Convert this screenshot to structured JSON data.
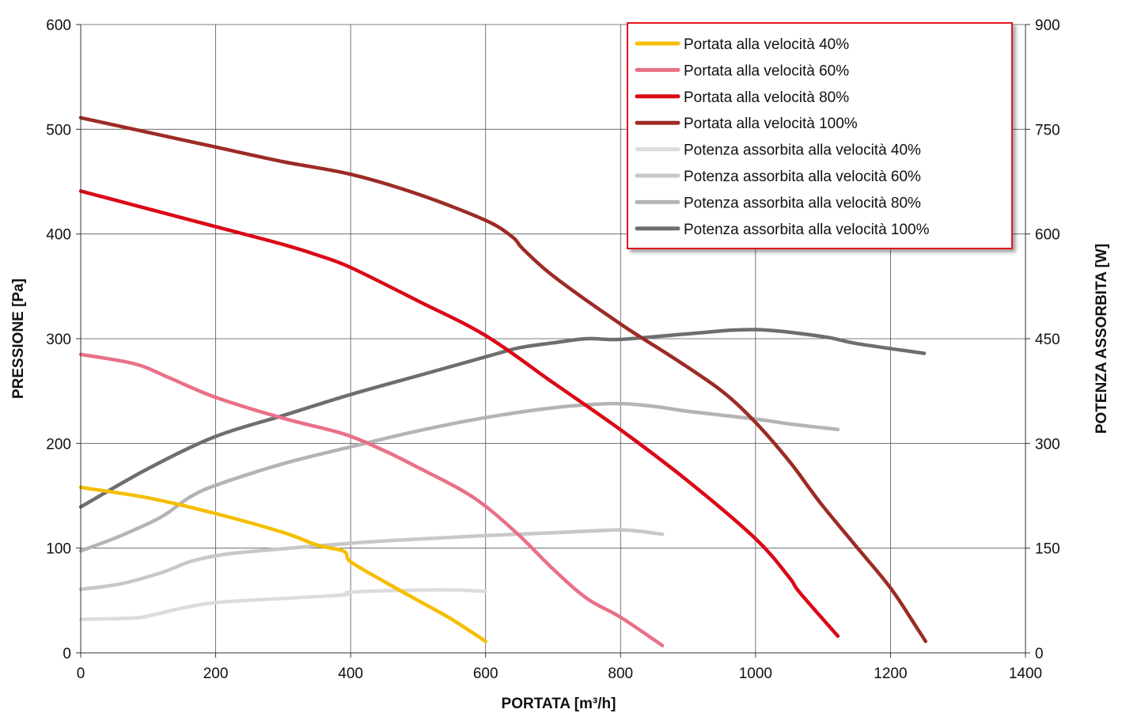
{
  "chart_data": {
    "type": "line",
    "title": "",
    "xlabel": "PORTATA [m³/h]",
    "ylabel": "PRESSIONE [Pa]",
    "y2label": "POTENZA ASSORBITA [W]",
    "xlim": [
      0,
      1400
    ],
    "ylim": [
      0,
      600
    ],
    "y2lim": [
      0,
      900
    ],
    "x_ticks": [
      "0",
      "200",
      "400",
      "600",
      "800",
      "1000",
      "1200",
      "1400"
    ],
    "y_ticks": [
      "0",
      "100",
      "200",
      "300",
      "400",
      "500",
      "600"
    ],
    "y2_ticks": [
      "0",
      "150",
      "300",
      "450",
      "600",
      "750",
      "900"
    ],
    "grid": true,
    "legend_position": "top-right",
    "series": [
      {
        "name": "Portata alla velocità 40%",
        "axis": "left",
        "color": "#F5BE00",
        "points": [
          [
            0,
            158
          ],
          [
            100,
            148
          ],
          [
            200,
            133
          ],
          [
            300,
            115
          ],
          [
            350,
            103
          ],
          [
            390,
            97
          ],
          [
            400,
            87
          ],
          [
            450,
            68
          ],
          [
            500,
            50
          ],
          [
            550,
            32
          ],
          [
            600,
            11
          ]
        ]
      },
      {
        "name": "Portata alla velocità 60%",
        "axis": "left",
        "color": "#E97088",
        "points": [
          [
            0,
            285
          ],
          [
            80,
            276
          ],
          [
            130,
            263
          ],
          [
            200,
            244
          ],
          [
            300,
            224
          ],
          [
            390,
            209
          ],
          [
            450,
            193
          ],
          [
            500,
            177
          ],
          [
            560,
            157
          ],
          [
            600,
            140
          ],
          [
            650,
            112
          ],
          [
            700,
            80
          ],
          [
            750,
            52
          ],
          [
            800,
            34
          ],
          [
            862,
            7
          ]
        ]
      },
      {
        "name": "Portata alla velocità 80%",
        "axis": "left",
        "color": "#DB0816",
        "points": [
          [
            0,
            441
          ],
          [
            100,
            424
          ],
          [
            200,
            407
          ],
          [
            300,
            390
          ],
          [
            350,
            380
          ],
          [
            400,
            368
          ],
          [
            500,
            336
          ],
          [
            600,
            303
          ],
          [
            700,
            258
          ],
          [
            800,
            213
          ],
          [
            900,
            164
          ],
          [
            1000,
            109
          ],
          [
            1050,
            72
          ],
          [
            1065,
            58
          ],
          [
            1122,
            16
          ]
        ]
      },
      {
        "name": "Portata alla velocità 100%",
        "axis": "left",
        "color": "#9C2B25",
        "points": [
          [
            0,
            511
          ],
          [
            100,
            497
          ],
          [
            200,
            483
          ],
          [
            300,
            469
          ],
          [
            400,
            457
          ],
          [
            500,
            438
          ],
          [
            600,
            413
          ],
          [
            640,
            397
          ],
          [
            655,
            386
          ],
          [
            700,
            360
          ],
          [
            800,
            314
          ],
          [
            880,
            281
          ],
          [
            950,
            250
          ],
          [
            1000,
            220
          ],
          [
            1050,
            183
          ],
          [
            1080,
            157
          ],
          [
            1100,
            140
          ],
          [
            1150,
            101
          ],
          [
            1200,
            62
          ],
          [
            1240,
            23
          ],
          [
            1252,
            11
          ]
        ]
      },
      {
        "name": "Potenza assorbita alla velocità 40%",
        "axis": "right",
        "color": "#DCDCDC",
        "points": [
          [
            0,
            48
          ],
          [
            80,
            50
          ],
          [
            110,
            55
          ],
          [
            150,
            64
          ],
          [
            200,
            72
          ],
          [
            300,
            78
          ],
          [
            390,
            83
          ],
          [
            400,
            87
          ],
          [
            500,
            90
          ],
          [
            560,
            90
          ],
          [
            600,
            88
          ]
        ]
      },
      {
        "name": "Potenza assorbita alla velocità 60%",
        "axis": "right",
        "color": "#C8C8C8",
        "points": [
          [
            0,
            91
          ],
          [
            60,
            99
          ],
          [
            120,
            115
          ],
          [
            160,
            130
          ],
          [
            200,
            139
          ],
          [
            250,
            145
          ],
          [
            400,
            157
          ],
          [
            500,
            163
          ],
          [
            600,
            168
          ],
          [
            700,
            172
          ],
          [
            790,
            176
          ],
          [
            820,
            175
          ],
          [
            862,
            170
          ]
        ]
      },
      {
        "name": "Potenza assorbita alla velocità 80%",
        "axis": "right",
        "color": "#B4B4B4",
        "points": [
          [
            0,
            146
          ],
          [
            60,
            168
          ],
          [
            120,
            195
          ],
          [
            160,
            222
          ],
          [
            200,
            240
          ],
          [
            300,
            271
          ],
          [
            400,
            295
          ],
          [
            500,
            318
          ],
          [
            600,
            337
          ],
          [
            700,
            351
          ],
          [
            790,
            357
          ],
          [
            850,
            353
          ],
          [
            900,
            346
          ],
          [
            1000,
            335
          ],
          [
            1050,
            328
          ],
          [
            1122,
            320
          ]
        ]
      },
      {
        "name": "Potenza assorbita alla velocità 100%",
        "axis": "right",
        "color": "#6E6E6E",
        "points": [
          [
            0,
            209
          ],
          [
            100,
            264
          ],
          [
            200,
            310
          ],
          [
            300,
            340
          ],
          [
            400,
            370
          ],
          [
            500,
            397
          ],
          [
            600,
            424
          ],
          [
            650,
            437
          ],
          [
            700,
            444
          ],
          [
            750,
            450
          ],
          [
            800,
            449
          ],
          [
            900,
            457
          ],
          [
            1000,
            463
          ],
          [
            1100,
            453
          ],
          [
            1150,
            443
          ],
          [
            1250,
            429
          ]
        ]
      }
    ]
  },
  "colors": {
    "legend_border": "#E2161B",
    "grid": "#555555",
    "axis": "#333333"
  }
}
